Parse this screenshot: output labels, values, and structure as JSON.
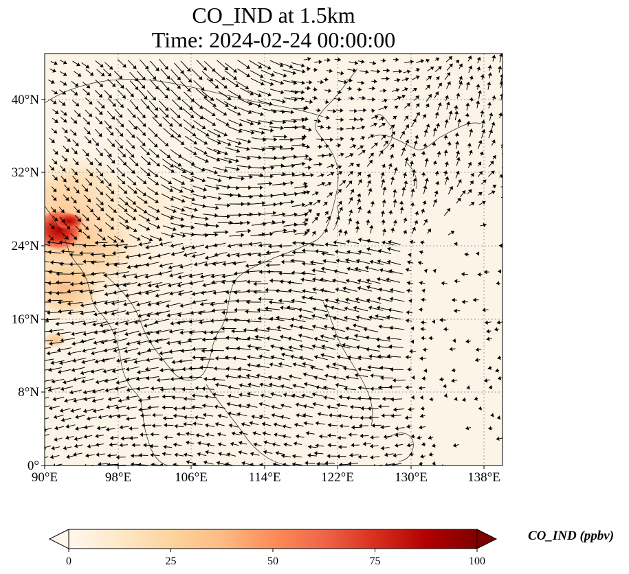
{
  "title": {
    "line1": "CO_IND at 1.5km",
    "line2": "Time: 2024-02-24 00:00:00"
  },
  "map": {
    "variable": "CO_IND",
    "level": "1.5km",
    "extent": {
      "lon": [
        90,
        140
      ],
      "lat": [
        0,
        45
      ]
    },
    "lon_ticks": [
      "90°E",
      "98°E",
      "106°E",
      "114°E",
      "122°E",
      "130°E",
      "138°E"
    ],
    "lat_ticks": [
      "0°",
      "8°N",
      "16°N",
      "24°N",
      "32°N",
      "40°N"
    ],
    "gridlines": true,
    "overlay": "wind vectors (quiver)",
    "plume_region": "high CO_IND over northeast India / Bangladesh / Myanmar, elevated over Indochina"
  },
  "colorbar": {
    "label": "CO_IND (ppbv)",
    "ticks": [
      "0",
      "25",
      "50",
      "75",
      "100"
    ],
    "range": [
      0,
      100
    ],
    "colormap": "OrRd",
    "colors": [
      "#fff7ec",
      "#fee8c8",
      "#fdd49e",
      "#fdbb84",
      "#fc8d59",
      "#ef6548",
      "#d7301f",
      "#b30000",
      "#7f0000"
    ],
    "extend": "both"
  }
}
